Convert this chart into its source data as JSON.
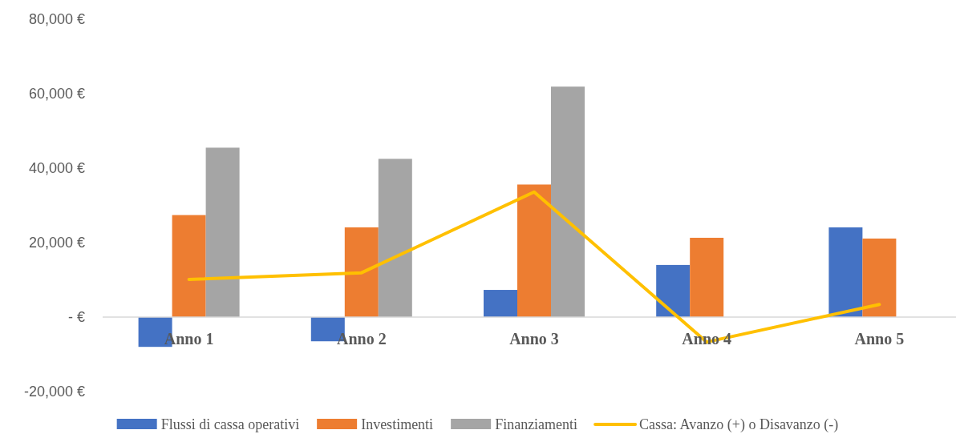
{
  "chart_data": {
    "type": "bar",
    "categories": [
      "Anno 1",
      "Anno 2",
      "Anno 3",
      "Anno 4",
      "Anno 5"
    ],
    "series": [
      {
        "name": "Flussi di cassa operativi",
        "color": "#4472c4",
        "values": [
          -8000,
          -6500,
          7300,
          14000,
          24100
        ]
      },
      {
        "name": "Investimenti",
        "color": "#ed7d31",
        "values": [
          27400,
          24100,
          35600,
          21300,
          21100
        ]
      },
      {
        "name": "Finanziamenti",
        "color": "#a5a5a5",
        "values": [
          45500,
          42500,
          61900,
          0,
          0
        ]
      },
      {
        "name": "Cassa: Avanzo (+) o Disavanzo (-)",
        "color": "#ffc000",
        "type": "line",
        "values": [
          10100,
          11900,
          33600,
          -6700,
          3400
        ]
      }
    ],
    "ylim": [
      -20000,
      80000
    ],
    "yticks": [
      {
        "value": -20000,
        "label": "-20,000 €"
      },
      {
        "value": 0,
        "label": "-   €"
      },
      {
        "value": 20000,
        "label": "20,000 €"
      },
      {
        "value": 40000,
        "label": "40,000 €"
      },
      {
        "value": 60000,
        "label": "60,000 €"
      },
      {
        "value": 80000,
        "label": "80,000 €"
      }
    ],
    "grid": false,
    "legend": "bottom"
  }
}
